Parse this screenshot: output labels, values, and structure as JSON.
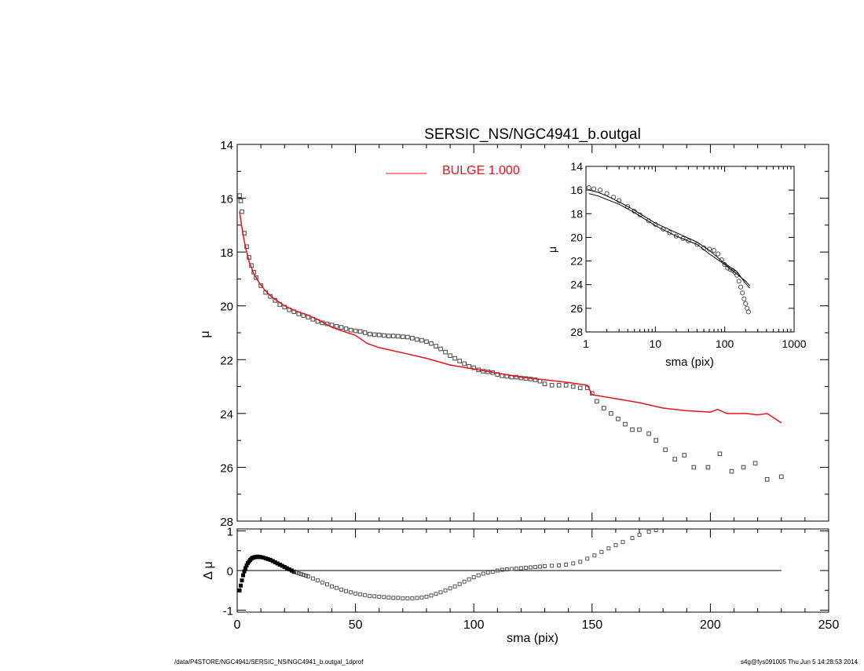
{
  "footer": {
    "path": "/data/P4STORE/NGC4941/SERSIC_NS/NGC4941_b.outgal_1dprof",
    "stamp": "s4g@fys091005  Thu Jun  5 14:28:53 2014"
  },
  "colors": {
    "model": "#e8141b",
    "data": "#555555",
    "axis": "#000000"
  },
  "chart_data": [
    {
      "id": "main",
      "type": "scatter",
      "title": "SERSIC_NS/NGC4941_b.outgal",
      "xlabel": "",
      "ylabel": "μ",
      "xlim": [
        0,
        250
      ],
      "ylim": [
        28,
        14
      ],
      "y_inverted": true,
      "y_ticks": [
        "14",
        "16",
        "18",
        "20",
        "22",
        "24",
        "26",
        "28"
      ],
      "legend": {
        "label": "BULGE  1.000",
        "placement": "top-center"
      },
      "series": [
        {
          "name": "BULGE  1.000",
          "kind": "line",
          "x": [
            1,
            2,
            3,
            4,
            5,
            7,
            9,
            12,
            15,
            20,
            25,
            30,
            35,
            40,
            45,
            50,
            55,
            60,
            70,
            80,
            90,
            100,
            110,
            120,
            130,
            140,
            148,
            150,
            160,
            170,
            180,
            190,
            200,
            203,
            207,
            215,
            220,
            224,
            230
          ],
          "y": [
            16.5,
            17.1,
            17.6,
            18.0,
            18.35,
            18.8,
            19.1,
            19.45,
            19.7,
            20.0,
            20.2,
            20.35,
            20.55,
            20.8,
            20.95,
            21.1,
            21.4,
            21.55,
            21.75,
            21.95,
            22.2,
            22.35,
            22.5,
            22.65,
            22.75,
            22.85,
            22.95,
            23.3,
            23.45,
            23.6,
            23.8,
            23.9,
            23.95,
            23.85,
            24.0,
            24.0,
            24.05,
            24.0,
            24.35
          ]
        },
        {
          "name": "",
          "kind": "markers",
          "x": [
            1,
            1.5,
            2,
            3,
            4,
            5,
            6,
            7,
            8,
            10,
            12,
            14,
            16,
            18,
            20,
            22,
            24,
            26,
            28,
            30,
            32,
            34,
            36,
            38,
            40,
            42,
            44,
            46,
            48,
            50,
            52,
            54,
            56,
            58,
            60,
            62,
            64,
            66,
            68,
            70,
            72,
            74,
            76,
            78,
            80,
            82,
            84,
            86,
            88,
            90,
            92,
            94,
            96,
            98,
            100,
            102,
            104,
            106,
            108,
            110,
            112,
            114,
            116,
            118,
            120,
            122,
            124,
            126,
            128,
            130,
            133,
            136,
            139,
            142,
            145,
            148,
            150,
            152,
            155,
            158,
            161,
            164,
            167,
            170,
            174,
            177,
            181,
            185,
            189,
            193,
            199,
            204,
            209,
            214,
            219,
            224,
            230
          ],
          "y": [
            15.9,
            16.1,
            16.5,
            17.3,
            17.8,
            18.2,
            18.5,
            18.75,
            18.95,
            19.25,
            19.5,
            19.65,
            19.8,
            19.95,
            20.05,
            20.15,
            20.22,
            20.3,
            20.36,
            20.42,
            20.5,
            20.58,
            20.63,
            20.67,
            20.71,
            20.76,
            20.8,
            20.85,
            20.9,
            20.93,
            20.95,
            21.0,
            21.05,
            21.07,
            21.08,
            21.1,
            21.12,
            21.12,
            21.13,
            21.15,
            21.16,
            21.2,
            21.25,
            21.28,
            21.33,
            21.4,
            21.5,
            21.6,
            21.72,
            21.85,
            21.95,
            22.05,
            22.15,
            22.25,
            22.3,
            22.38,
            22.43,
            22.45,
            22.48,
            22.55,
            22.6,
            22.62,
            22.65,
            22.65,
            22.68,
            22.7,
            22.72,
            22.75,
            22.8,
            22.9,
            22.95,
            22.95,
            22.95,
            23.0,
            23.05,
            23.05,
            23.25,
            23.55,
            23.8,
            24.0,
            24.2,
            24.4,
            24.6,
            24.6,
            24.75,
            25.0,
            25.35,
            25.7,
            25.55,
            26.0,
            26.0,
            25.5,
            26.15,
            26.0,
            25.85,
            26.45,
            26.35
          ]
        }
      ]
    },
    {
      "id": "inset",
      "type": "scatter",
      "title": "",
      "xlabel": "sma (pix)",
      "ylabel": "μ",
      "xscale": "log",
      "xlim": [
        1,
        1000
      ],
      "ylim": [
        28,
        14
      ],
      "y_inverted": true,
      "x_ticks": [
        "1",
        "10",
        "100",
        "1000"
      ],
      "y_ticks": [
        "14",
        "16",
        "18",
        "20",
        "22",
        "24",
        "26",
        "28"
      ],
      "series": [
        {
          "name": "",
          "kind": "markers",
          "x": [
            1.1,
            1.3,
            1.6,
            2.0,
            2.5,
            3.0,
            4.0,
            5.0,
            6.0,
            8.0,
            10,
            13,
            16,
            20,
            25,
            30,
            40,
            50,
            60,
            70,
            80,
            90,
            100,
            110,
            120,
            130,
            140,
            150,
            160,
            170,
            180,
            190,
            200,
            210,
            220
          ],
          "y": [
            15.8,
            15.9,
            16.0,
            16.3,
            16.6,
            16.9,
            17.4,
            17.8,
            18.1,
            18.6,
            18.9,
            19.3,
            19.6,
            19.9,
            20.1,
            20.3,
            20.6,
            20.9,
            21.0,
            21.1,
            21.4,
            21.9,
            22.3,
            22.6,
            22.7,
            22.8,
            22.95,
            23.2,
            23.7,
            24.2,
            24.7,
            25.2,
            25.6,
            26.0,
            26.3
          ]
        },
        {
          "name": "",
          "kind": "line",
          "x": [
            1.1,
            1.5,
            2,
            3,
            5,
            10,
            20,
            40,
            60,
            100,
            150,
            200,
            230
          ],
          "y": [
            16.3,
            16.5,
            16.8,
            17.2,
            17.9,
            19.0,
            19.9,
            20.6,
            21.4,
            22.3,
            23.1,
            23.7,
            24.1
          ]
        },
        {
          "name": "",
          "kind": "line",
          "x": [
            1.1,
            1.5,
            2,
            3,
            5,
            10,
            20,
            40,
            60,
            100,
            150,
            200,
            230
          ],
          "y": [
            16.0,
            16.2,
            16.5,
            17.0,
            17.7,
            18.8,
            19.6,
            20.4,
            21.1,
            22.2,
            22.9,
            23.9,
            24.3
          ]
        }
      ]
    },
    {
      "id": "residual",
      "type": "scatter",
      "title": "",
      "xlabel": "sma (pix)",
      "ylabel": "Δ μ",
      "xlim": [
        0,
        250
      ],
      "ylim": [
        -1.05,
        1.05
      ],
      "x_ticks": [
        "0",
        "50",
        "100",
        "150",
        "200",
        "250"
      ],
      "y_ticks": [
        "1",
        "0",
        "-1"
      ],
      "zero_line_x": [
        0,
        230
      ],
      "series": [
        {
          "name": "",
          "kind": "markers",
          "x": [
            1,
            1.5,
            2,
            2.5,
            3,
            3.5,
            4,
            4.5,
            5,
            5.5,
            6,
            6.5,
            7,
            7.5,
            8,
            8.5,
            9,
            9.5,
            10,
            11,
            12,
            13,
            14,
            15,
            16,
            17,
            18,
            19,
            20,
            21,
            22,
            23,
            24,
            25,
            26,
            27,
            28,
            29,
            30,
            32,
            34,
            36,
            38,
            40,
            42,
            44,
            46,
            48,
            50,
            52,
            54,
            56,
            58,
            60,
            62,
            64,
            66,
            68,
            70,
            72,
            74,
            76,
            78,
            80,
            82,
            84,
            86,
            88,
            90,
            92,
            94,
            96,
            98,
            100,
            102,
            104,
            106,
            108,
            110,
            112,
            114,
            116,
            118,
            120,
            122,
            124,
            126,
            128,
            130,
            133,
            136,
            139,
            142,
            145,
            148,
            151,
            154,
            157,
            160,
            163,
            167,
            170,
            174,
            177
          ],
          "y": [
            -0.5,
            -0.38,
            -0.25,
            -0.12,
            -0.02,
            0.06,
            0.13,
            0.19,
            0.23,
            0.27,
            0.3,
            0.32,
            0.33,
            0.34,
            0.34,
            0.35,
            0.35,
            0.34,
            0.34,
            0.33,
            0.31,
            0.29,
            0.27,
            0.24,
            0.21,
            0.18,
            0.15,
            0.12,
            0.09,
            0.06,
            0.03,
            0.0,
            -0.03,
            -0.05,
            -0.07,
            -0.09,
            -0.11,
            -0.13,
            -0.15,
            -0.2,
            -0.25,
            -0.3,
            -0.35,
            -0.4,
            -0.44,
            -0.48,
            -0.52,
            -0.55,
            -0.58,
            -0.6,
            -0.62,
            -0.64,
            -0.65,
            -0.66,
            -0.67,
            -0.68,
            -0.69,
            -0.69,
            -0.7,
            -0.7,
            -0.7,
            -0.69,
            -0.68,
            -0.66,
            -0.63,
            -0.59,
            -0.55,
            -0.5,
            -0.45,
            -0.4,
            -0.34,
            -0.28,
            -0.22,
            -0.17,
            -0.12,
            -0.08,
            -0.05,
            -0.03,
            0.0,
            0.02,
            0.03,
            0.04,
            0.05,
            0.06,
            0.07,
            0.08,
            0.09,
            0.1,
            0.11,
            0.12,
            0.13,
            0.15,
            0.18,
            0.22,
            0.3,
            0.38,
            0.47,
            0.56,
            0.64,
            0.72,
            0.82,
            0.9,
            0.98,
            1.02
          ]
        }
      ]
    }
  ]
}
